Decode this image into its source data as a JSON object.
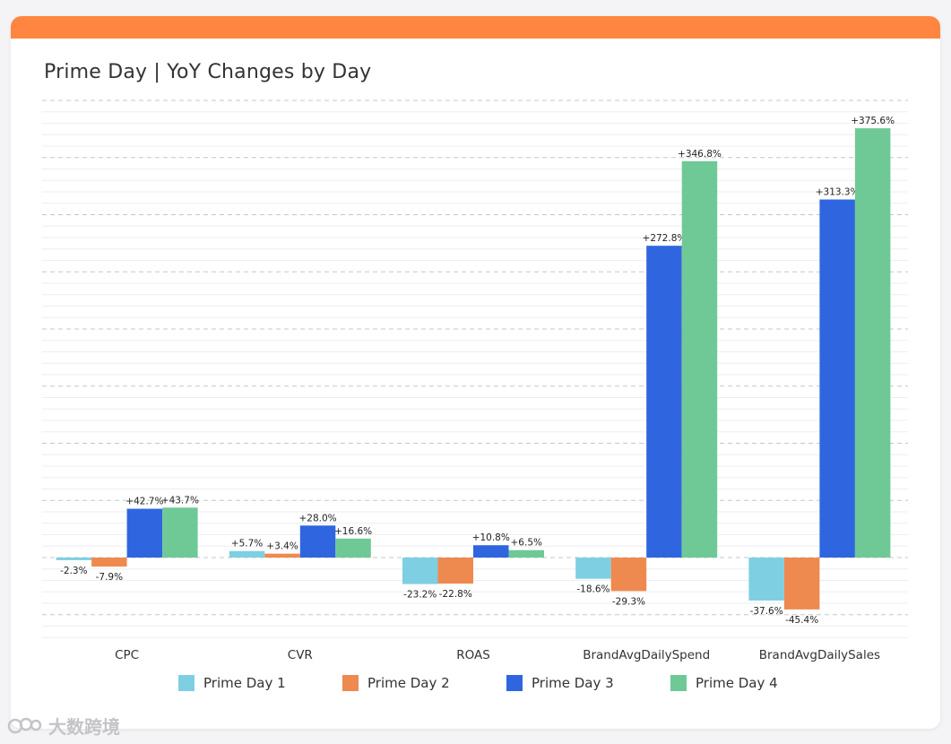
{
  "colors": {
    "top_bar": "#FF8540",
    "grid": "#c8ccd2",
    "tick_text": "#333333",
    "label_text": "#222222"
  },
  "chart_data": {
    "type": "bar",
    "title": "Prime Day | YoY Changes by Day",
    "xlabel": "",
    "ylabel": "",
    "ylim": [
      -100,
      400
    ],
    "grid": true,
    "legend_position": "bottom",
    "categories": [
      "CPC",
      "CVR",
      "ROAS",
      "BrandAvgDailySpend",
      "BrandAvgDailySales"
    ],
    "series": [
      {
        "name": "Prime Day 1",
        "color": "#7ECFE2",
        "values": [
          -2.3,
          5.7,
          -23.2,
          -18.6,
          -37.6
        ],
        "labels": [
          "-2.3%",
          "+5.7%",
          "-23.2%",
          "-18.6%",
          "-37.6%"
        ]
      },
      {
        "name": "Prime Day 2",
        "color": "#EE8A4F",
        "values": [
          -7.9,
          3.4,
          -22.8,
          -29.3,
          -45.4
        ],
        "labels": [
          "-7.9%",
          "+3.4%",
          "-22.8%",
          "-29.3%",
          "-45.4%"
        ]
      },
      {
        "name": "Prime Day 3",
        "color": "#2F66DF",
        "values": [
          42.7,
          28.0,
          10.8,
          272.8,
          313.3
        ],
        "labels": [
          "+42.7%",
          "+28.0%",
          "+10.8%",
          "+272.8%",
          "+313.3%"
        ]
      },
      {
        "name": "Prime Day 4",
        "color": "#6FC996",
        "values": [
          43.7,
          16.6,
          6.5,
          346.8,
          375.6
        ],
        "labels": [
          "+43.7%",
          "+16.6%",
          "+6.5%",
          "+346.8%",
          "+375.6%"
        ]
      }
    ]
  },
  "watermark": {
    "text": "大数跨境"
  }
}
